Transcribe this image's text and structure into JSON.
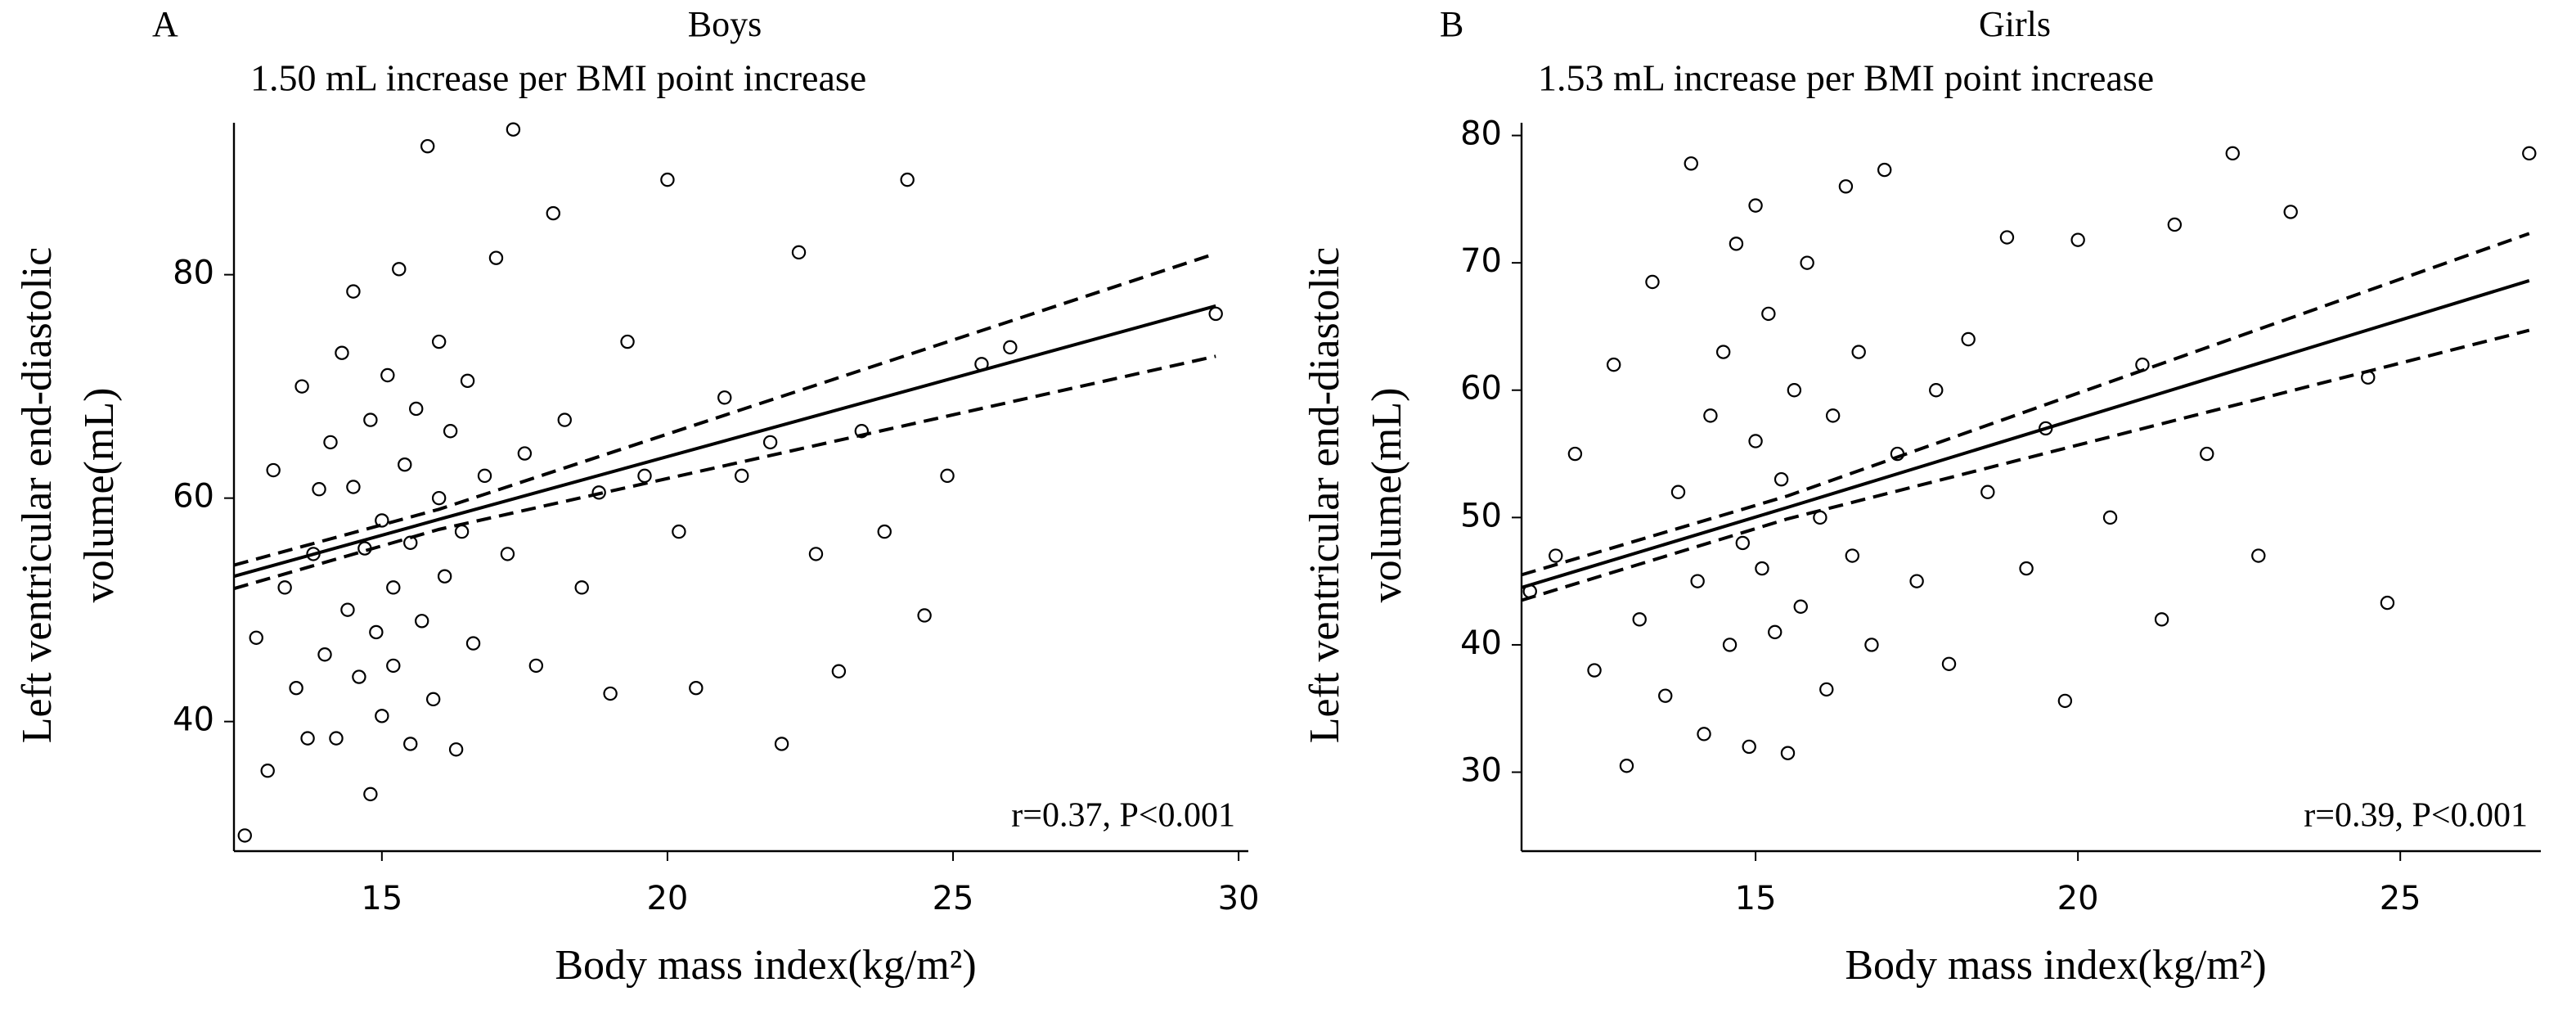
{
  "chart_data": [
    {
      "type": "scatter",
      "panel_label": "A",
      "title": "Boys",
      "subtitle": "1.50 mL increase per BMI point increase",
      "xlabel": "Body mass index(kg/m²)",
      "ylabel": [
        "Left ventricular end-diastolic",
        "volume(mL)"
      ],
      "annotation": "r=0.37, P<0.001",
      "color": "#000000",
      "marker": "open-circle",
      "xlim": [
        12.41,
        30.17
      ],
      "ylim": [
        28.4,
        93.6
      ],
      "xticks": [
        15,
        20,
        25,
        30
      ],
      "yticks": [
        40,
        60,
        80
      ],
      "x": [
        12.6,
        12.8,
        13.0,
        13.1,
        13.3,
        13.5,
        13.6,
        13.7,
        13.8,
        13.9,
        14.0,
        14.1,
        14.2,
        14.3,
        14.4,
        14.5,
        14.5,
        14.6,
        14.7,
        14.8,
        14.8,
        14.9,
        15.0,
        15.0,
        15.1,
        15.2,
        15.2,
        15.3,
        15.4,
        15.5,
        15.5,
        15.6,
        15.7,
        15.8,
        15.9,
        16.0,
        16.0,
        16.1,
        16.2,
        16.3,
        16.4,
        16.5,
        16.6,
        16.8,
        17.0,
        17.2,
        17.3,
        17.5,
        17.7,
        18.0,
        18.2,
        18.5,
        18.8,
        19.0,
        19.3,
        19.6,
        20.0,
        20.2,
        20.5,
        21.0,
        21.3,
        21.8,
        22.0,
        22.3,
        22.6,
        23.0,
        23.4,
        23.8,
        24.2,
        24.5,
        24.9,
        25.5,
        26.0,
        29.6
      ],
      "y": [
        29.8,
        47.5,
        35.6,
        62.5,
        52.0,
        43.0,
        70.0,
        38.5,
        55.0,
        60.8,
        46.0,
        65.0,
        38.5,
        73.0,
        50.0,
        61.0,
        78.5,
        44.0,
        55.5,
        33.5,
        67.0,
        48.0,
        40.5,
        58.0,
        71.0,
        52.0,
        45.0,
        80.5,
        63.0,
        38.0,
        56.0,
        68.0,
        49.0,
        91.5,
        42.0,
        60.0,
        74.0,
        53.0,
        66.0,
        37.5,
        57.0,
        70.5,
        47.0,
        62.0,
        81.5,
        55.0,
        93.0,
        64.0,
        45.0,
        85.5,
        67.0,
        52.0,
        60.5,
        42.5,
        74.0,
        62.0,
        88.5,
        57.0,
        43.0,
        69.0,
        62.0,
        65.0,
        38.0,
        82.0,
        55.0,
        44.5,
        66.0,
        57.0,
        88.5,
        49.5,
        62.0,
        72.0,
        73.5,
        76.5
      ],
      "fit_line": {
        "x": [
          12.41,
          16.0,
          29.6
        ],
        "y": [
          53.0,
          58.1,
          77.2
        ]
      },
      "ci_upper": {
        "x": [
          12.41,
          16.0,
          29.6
        ],
        "y": [
          54.0,
          59.0,
          81.9
        ]
      },
      "ci_lower": {
        "x": [
          12.41,
          16.0,
          29.6
        ],
        "y": [
          51.9,
          57.2,
          72.7
        ]
      }
    },
    {
      "type": "scatter",
      "panel_label": "B",
      "title": "Girls",
      "subtitle": "1.53 mL increase per BMI point increase",
      "xlabel": "Body mass index(kg/m²)",
      "ylabel": [
        "Left ventricular end-diastolic",
        "volume(mL)"
      ],
      "annotation": "r=0.39, P<0.001",
      "color": "#000000",
      "marker": "open-circle",
      "xlim": [
        11.37,
        27.18
      ],
      "ylim": [
        23.8,
        81.0
      ],
      "xticks": [
        15,
        20,
        25
      ],
      "yticks": [
        30,
        40,
        50,
        60,
        70,
        80
      ],
      "x": [
        11.5,
        11.9,
        12.2,
        12.5,
        12.8,
        13.0,
        13.2,
        13.4,
        13.6,
        13.8,
        14.0,
        14.1,
        14.2,
        14.3,
        14.5,
        14.6,
        14.7,
        14.8,
        14.9,
        15.0,
        15.0,
        15.1,
        15.2,
        15.3,
        15.4,
        15.5,
        15.6,
        15.7,
        15.8,
        16.0,
        16.1,
        16.2,
        16.4,
        16.5,
        16.6,
        16.8,
        17.0,
        17.2,
        17.5,
        17.8,
        18.0,
        18.3,
        18.6,
        18.9,
        19.2,
        19.5,
        19.8,
        20.0,
        20.5,
        21.0,
        21.3,
        21.5,
        22.0,
        22.4,
        22.8,
        23.3,
        24.5,
        24.8,
        27.0
      ],
      "y": [
        44.2,
        47.0,
        55.0,
        38.0,
        62.0,
        30.5,
        42.0,
        68.5,
        36.0,
        52.0,
        77.8,
        45.0,
        33.0,
        58.0,
        63.0,
        40.0,
        71.5,
        48.0,
        32.0,
        56.0,
        74.5,
        46.0,
        66.0,
        41.0,
        53.0,
        31.5,
        60.0,
        43.0,
        70.0,
        50.0,
        36.5,
        58.0,
        76.0,
        47.0,
        63.0,
        40.0,
        77.3,
        55.0,
        45.0,
        60.0,
        38.5,
        64.0,
        52.0,
        72.0,
        46.0,
        57.0,
        35.6,
        71.8,
        50.0,
        62.0,
        42.0,
        73.0,
        55.0,
        78.6,
        47.0,
        74.0,
        61.0,
        43.3,
        78.6
      ],
      "fit_line": {
        "x": [
          11.37,
          15.5,
          27.0
        ],
        "y": [
          44.5,
          50.8,
          68.6
        ]
      },
      "ci_upper": {
        "x": [
          11.37,
          15.5,
          27.0
        ],
        "y": [
          45.5,
          51.7,
          72.3
        ]
      },
      "ci_lower": {
        "x": [
          11.37,
          15.5,
          27.0
        ],
        "y": [
          43.5,
          49.9,
          64.7
        ]
      }
    }
  ]
}
